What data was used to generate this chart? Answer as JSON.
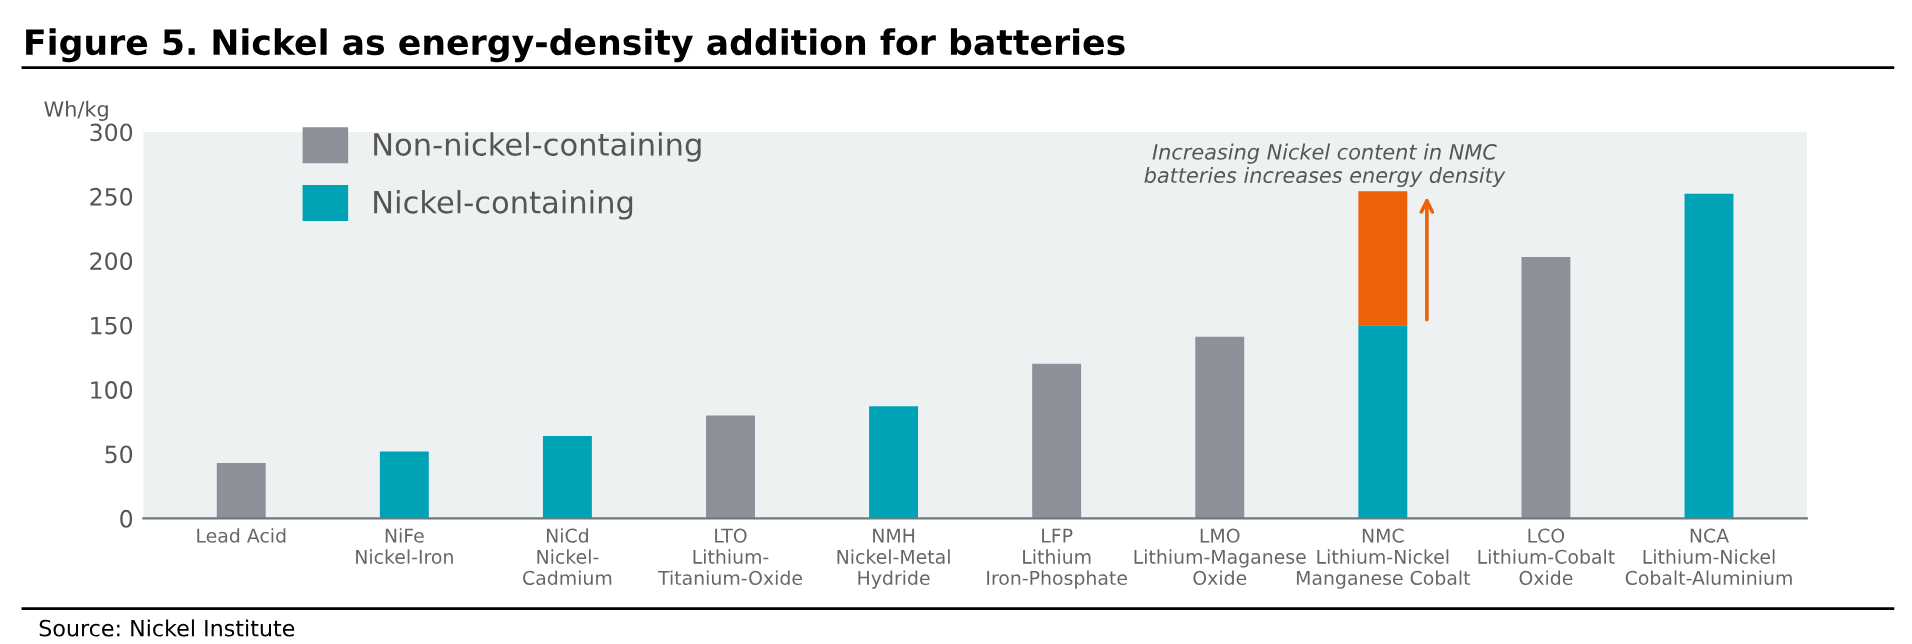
{
  "chart_data": {
    "type": "bar",
    "title": "Figure 5. Nickel as energy-density addition for batteries",
    "ylabel": "Wh/kg",
    "categories": [
      "Lead Acid",
      "NiFe\nNickel-Iron",
      "NiCd\nNickel-\nCadmium",
      "LTO\nLithium-\nTitanium-Oxide",
      "NMH\nNickel-Metal\nHydride",
      "LFP\nLithium\nIron-Phosphate",
      "LMO\nLithium-Maganese\nOxide",
      "NMC\nLithium-Nickel\nManganese Cobalt",
      "LCO\nLithium-Cobalt\nOxide",
      "NCA\nLithium-Nickel\nCobalt-Aluminium"
    ],
    "stacked": true,
    "series": [
      {
        "name": "Non-nickel-containing",
        "color": "#8e9099",
        "values": [
          43,
          null,
          null,
          80,
          null,
          120,
          141,
          null,
          203,
          null
        ]
      },
      {
        "name": "Nickel-containing",
        "color": "#00a2b5",
        "values": [
          null,
          52,
          64,
          null,
          87,
          null,
          null,
          150,
          null,
          252
        ]
      },
      {
        "color": "#eb6209",
        "values": [
          null,
          null,
          null,
          null,
          null,
          null,
          null,
          104,
          null,
          null
        ]
      }
    ],
    "ylim": [
      0,
      300
    ],
    "yticks": [
      0,
      50,
      100,
      150,
      200,
      250,
      300
    ],
    "legend": "top left",
    "annotations": [
      "Increasing Nickel content in NMC\nbatteries increases energy density",
      "Source: Nickel Institute"
    ]
  }
}
